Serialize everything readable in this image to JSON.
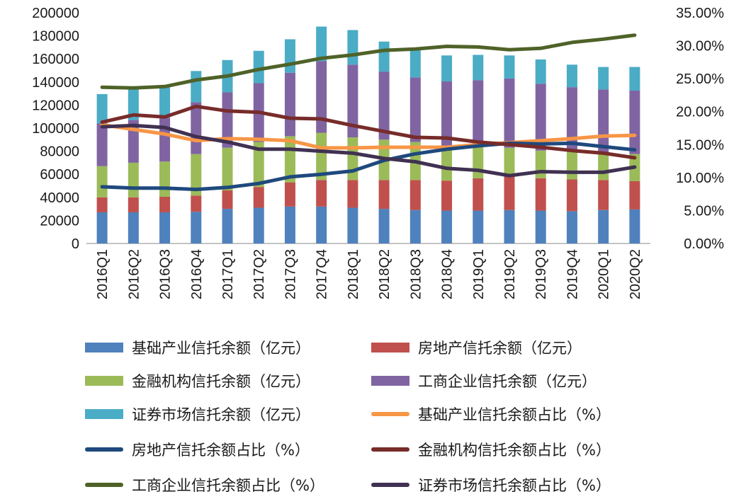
{
  "chart_data": {
    "type": "bar",
    "stacked": true,
    "categories": [
      "2016Q1",
      "2016Q2",
      "2016Q3",
      "2016Q4",
      "2017Q1",
      "2017Q2",
      "2017Q3",
      "2017Q4",
      "2018Q1",
      "2018Q2",
      "2018Q3",
      "2018Q4",
      "2019Q1",
      "2019Q2",
      "2019Q3",
      "2019Q4",
      "2020Q1",
      "2020Q2"
    ],
    "y_left": {
      "ylim": [
        0,
        200000
      ],
      "ticks": [
        "0",
        "20000",
        "40000",
        "60000",
        "80000",
        "100000",
        "120000",
        "140000",
        "160000",
        "180000",
        "200000"
      ]
    },
    "y_right": {
      "ylim": [
        0,
        35
      ],
      "ticks": [
        "0.00%",
        "5.00%",
        "10.00%",
        "15.00%",
        "20.00%",
        "25.00%",
        "30.00%",
        "35.00%"
      ]
    },
    "grid": false,
    "legend_position": "bottom",
    "series": [
      {
        "name": "基础产业信托余额（亿元）",
        "kind": "bar",
        "color": "#4f81bd",
        "values": [
          27000,
          27000,
          27000,
          27500,
          30000,
          31000,
          32000,
          32000,
          31000,
          30000,
          29000,
          28500,
          28500,
          29000,
          28500,
          28000,
          29000,
          29500
        ]
      },
      {
        "name": "房地产信托余额（亿元）",
        "kind": "bar",
        "color": "#c0504d",
        "values": [
          13000,
          13000,
          13500,
          14000,
          16000,
          18000,
          21000,
          23000,
          24000,
          25000,
          26000,
          26000,
          28000,
          29000,
          28000,
          27500,
          26000,
          24500
        ]
      },
      {
        "name": "金融机构信托余额（亿元）",
        "kind": "bar",
        "color": "#9bbb59",
        "values": [
          27000,
          30000,
          30500,
          36000,
          37000,
          39000,
          40000,
          41000,
          37000,
          35000,
          33000,
          30000,
          27000,
          25000,
          24000,
          24000,
          23500,
          23500
        ]
      },
      {
        "name": "工商企业信托余额（亿元）",
        "kind": "bar",
        "color": "#8064a2",
        "values": [
          37000,
          37000,
          38000,
          45000,
          48000,
          51000,
          55000,
          62000,
          63000,
          59000,
          56000,
          56000,
          58000,
          60000,
          58000,
          56000,
          55000,
          55000
        ]
      },
      {
        "name": "证券市场信托余额（亿元）",
        "kind": "bar",
        "color": "#4bacc6",
        "values": [
          25500,
          29000,
          28000,
          27000,
          28000,
          28000,
          29000,
          30000,
          30000,
          26000,
          24000,
          22500,
          22000,
          20000,
          21000,
          19500,
          19500,
          20500
        ]
      },
      {
        "name": "基础产业信托余额占比（%）",
        "kind": "line",
        "color": "#f79646",
        "values": [
          18.0,
          17.3,
          16.6,
          15.6,
          15.9,
          15.8,
          15.6,
          14.5,
          14.5,
          14.6,
          14.6,
          14.6,
          15.0,
          15.3,
          15.6,
          15.9,
          16.3,
          16.4
        ]
      },
      {
        "name": "房地产信托余额占比（%）",
        "kind": "line",
        "color": "#1f497d",
        "values": [
          8.6,
          8.4,
          8.4,
          8.2,
          8.5,
          9.1,
          10.1,
          10.5,
          11.0,
          12.6,
          13.6,
          14.3,
          14.8,
          15.2,
          15.1,
          15.2,
          14.7,
          14.2
        ]
      },
      {
        "name": "金融机构信托余额占比（%）",
        "kind": "line",
        "color": "#772c2a",
        "values": [
          18.4,
          19.5,
          19.2,
          20.8,
          20.1,
          19.9,
          19.0,
          18.9,
          17.9,
          17.0,
          16.1,
          16.0,
          15.4,
          15.0,
          14.6,
          14.1,
          13.7,
          13.0
        ]
      },
      {
        "name": "工商企业信托余额占比（%）",
        "kind": "line",
        "color": "#4f6228",
        "values": [
          23.7,
          23.6,
          23.8,
          24.8,
          25.4,
          26.4,
          27.2,
          28.1,
          28.6,
          29.3,
          29.5,
          29.9,
          29.8,
          29.4,
          29.6,
          30.5,
          31.0,
          31.6
        ]
      },
      {
        "name": "证券市场信托余额占比（%）",
        "kind": "line",
        "color": "#403152",
        "values": [
          17.7,
          17.9,
          17.6,
          16.2,
          15.4,
          14.3,
          14.3,
          14.0,
          13.7,
          12.9,
          12.4,
          11.4,
          11.1,
          10.3,
          10.9,
          10.8,
          10.8,
          11.6
        ]
      }
    ]
  }
}
